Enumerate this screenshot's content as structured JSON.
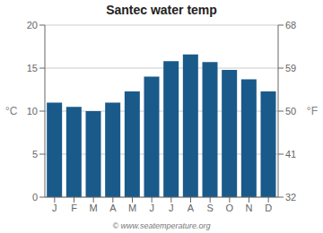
{
  "chart_data": {
    "type": "bar",
    "title": "Santec water temp",
    "categories": [
      "J",
      "F",
      "M",
      "A",
      "M",
      "J",
      "J",
      "A",
      "S",
      "O",
      "N",
      "D"
    ],
    "values": [
      11.0,
      10.5,
      10.0,
      11.0,
      12.3,
      14.0,
      15.8,
      16.6,
      15.7,
      14.8,
      13.7,
      12.3
    ],
    "color": "#1a5a8a",
    "ylabel": "°C",
    "ylim": [
      0,
      20
    ],
    "yticks": [
      0,
      5,
      10,
      15,
      20
    ],
    "y2label": "°F",
    "y2lim": [
      32,
      68
    ],
    "y2ticks": [
      32,
      41,
      50,
      59,
      68
    ],
    "grid": true,
    "annotations": [
      "© www.seatemperature.org"
    ]
  }
}
